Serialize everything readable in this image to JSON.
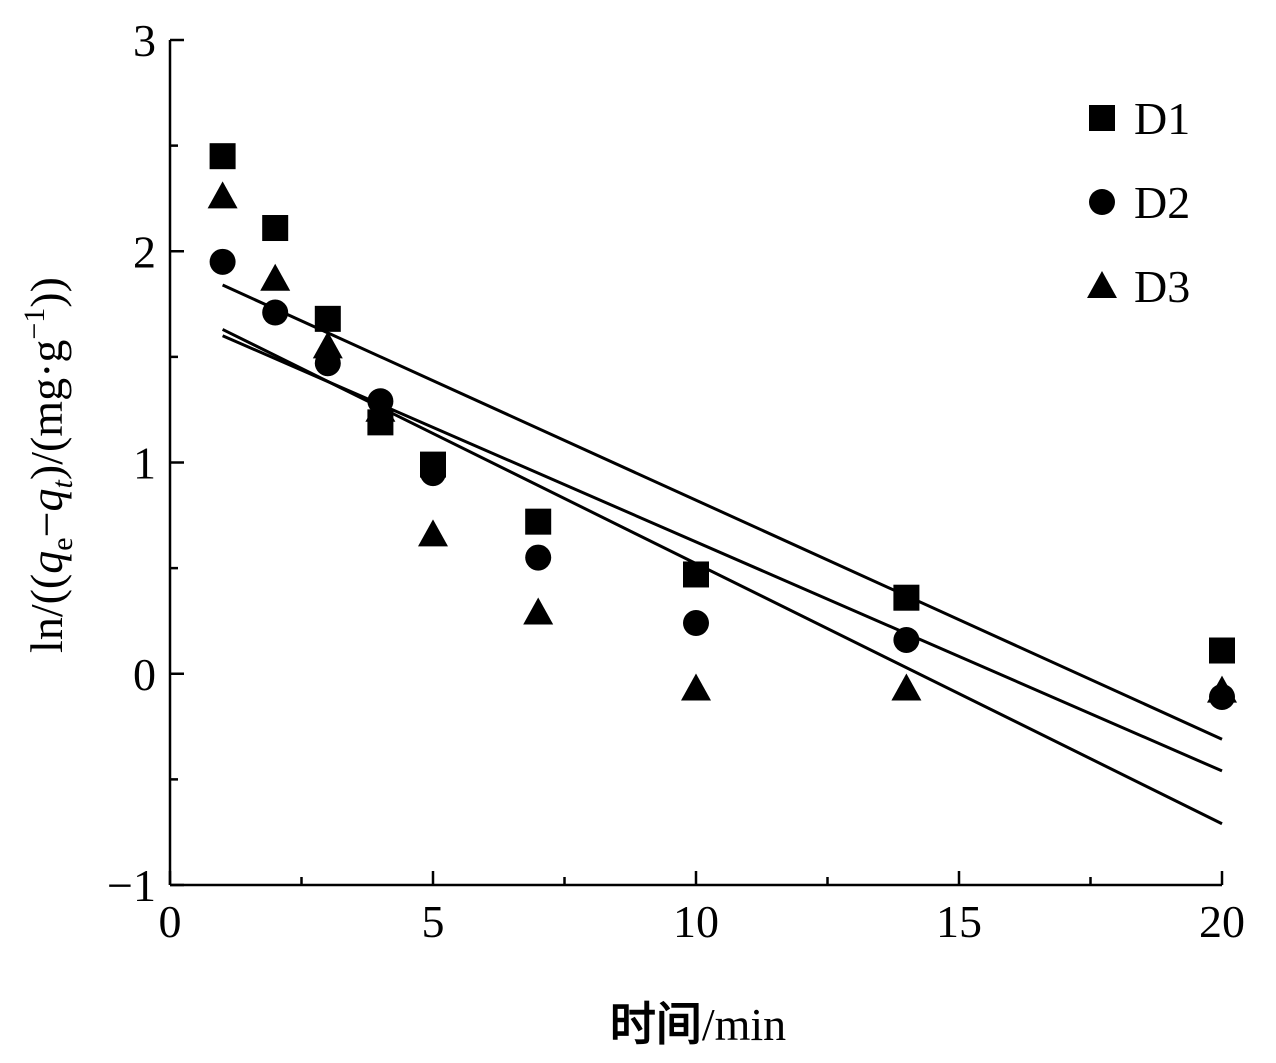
{
  "chart_data": {
    "type": "scatter",
    "title": "",
    "xlabel": {
      "prefix": "时间",
      "suffix": "/min"
    },
    "ylabel": {
      "p1": "ln/((",
      "q1": "q",
      "s1": "e",
      "p2": "−",
      "q2": "q",
      "s2": "t",
      "p3": ")/(mg·g",
      "sup": "−1",
      "p4": "))"
    },
    "xlim": [
      0,
      20
    ],
    "ylim": [
      -1,
      3
    ],
    "x_ticks": [
      0,
      5,
      10,
      15,
      20
    ],
    "x_minor_ticks": [
      2.5,
      7.5,
      12.5,
      17.5
    ],
    "y_ticks": [
      -1,
      0,
      1,
      2,
      3
    ],
    "y_minor_ticks": [
      -0.5,
      0.5,
      1.5,
      2.5
    ],
    "x_tick_labels": [
      "0",
      "5",
      "10",
      "15",
      "20"
    ],
    "y_tick_labels": [
      "−1",
      "0",
      "1",
      "2",
      "3"
    ],
    "grid": false,
    "legend_position": "top-right",
    "series": [
      {
        "name": "D1",
        "marker": "square",
        "x": [
          1,
          2,
          3,
          4,
          5,
          7,
          10,
          14,
          20
        ],
        "y": [
          2.45,
          2.11,
          1.68,
          1.19,
          0.99,
          0.72,
          0.47,
          0.36,
          0.11
        ],
        "fit": {
          "x": [
            1,
            20
          ],
          "y": [
            1.84,
            -0.31
          ]
        }
      },
      {
        "name": "D2",
        "marker": "circle",
        "x": [
          1,
          2,
          3,
          4,
          5,
          7,
          10,
          14,
          20
        ],
        "y": [
          1.95,
          1.71,
          1.47,
          1.29,
          0.95,
          0.55,
          0.24,
          0.16,
          -0.11
        ],
        "fit": {
          "x": [
            1,
            20
          ],
          "y": [
            1.6,
            -0.46
          ]
        }
      },
      {
        "name": "D3",
        "marker": "triangle",
        "x": [
          1,
          2,
          3,
          4,
          5,
          7,
          10,
          14,
          20
        ],
        "y": [
          2.26,
          1.87,
          1.55,
          1.25,
          0.66,
          0.29,
          -0.07,
          -0.07,
          -0.08
        ],
        "fit": {
          "x": [
            1,
            20
          ],
          "y": [
            1.63,
            -0.71
          ]
        }
      }
    ]
  }
}
